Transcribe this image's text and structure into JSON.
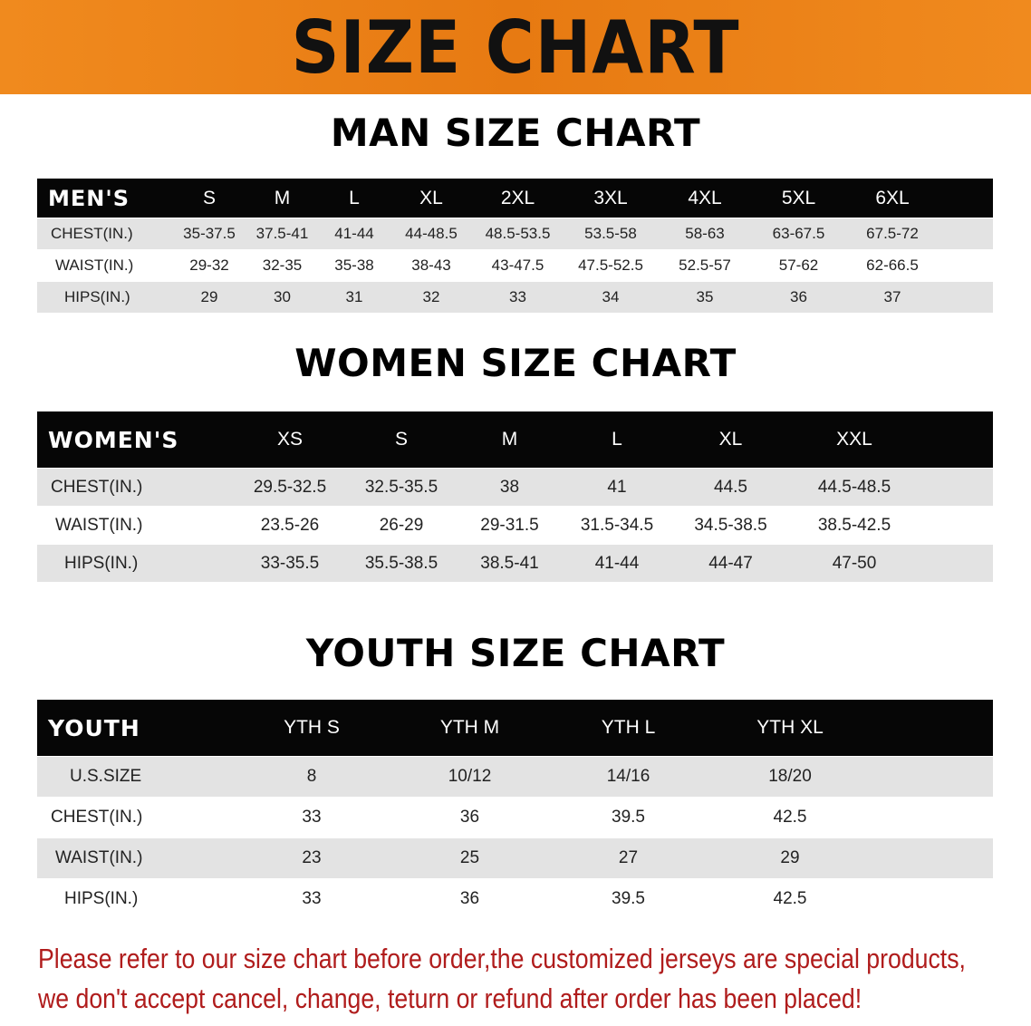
{
  "banner": {
    "title": "SIZE CHART",
    "color": "#ee8418"
  },
  "men": {
    "title": "MAN SIZE CHART",
    "header": [
      "MEN'S",
      "S",
      "M",
      "L",
      "XL",
      "2XL",
      "3XL",
      "4XL",
      "5XL",
      "6XL"
    ],
    "rows": [
      [
        "CHEST(IN.)",
        "35-37.5",
        "37.5-41",
        "41-44",
        "44-48.5",
        "48.5-53.5",
        "53.5-58",
        "58-63",
        "63-67.5",
        "67.5-72"
      ],
      [
        "WAIST(IN.)",
        "29-32",
        "32-35",
        "35-38",
        "38-43",
        "43-47.5",
        "47.5-52.5",
        "52.5-57",
        "57-62",
        "62-66.5"
      ],
      [
        "HIPS(IN.)",
        "29",
        "30",
        "31",
        "32",
        "33",
        "34",
        "35",
        "36",
        "37"
      ]
    ]
  },
  "women": {
    "title": "WOMEN SIZE CHART",
    "header": [
      "WOMEN'S",
      "XS",
      "S",
      "M",
      "L",
      "XL",
      "XXL"
    ],
    "rows": [
      [
        "CHEST(IN.)",
        "29.5-32.5",
        "32.5-35.5",
        "38",
        "41",
        "44.5",
        "44.5-48.5"
      ],
      [
        "WAIST(IN.)",
        "23.5-26",
        "26-29",
        "29-31.5",
        "31.5-34.5",
        "34.5-38.5",
        "38.5-42.5"
      ],
      [
        "HIPS(IN.)",
        "33-35.5",
        "35.5-38.5",
        "38.5-41",
        "41-44",
        "44-47",
        "47-50"
      ]
    ]
  },
  "youth": {
    "title": "YOUTH SIZE CHART",
    "header": [
      "YOUTH",
      "YTH S",
      "YTH M",
      "YTH L",
      "YTH XL"
    ],
    "rows": [
      [
        "U.S.SIZE",
        "8",
        "10/12",
        "14/16",
        "18/20"
      ],
      [
        "CHEST(IN.)",
        "33",
        "36",
        "39.5",
        "42.5"
      ],
      [
        "WAIST(IN.)",
        "23",
        "25",
        "27",
        "29"
      ],
      [
        "HIPS(IN.)",
        "33",
        "36",
        "39.5",
        "42.5"
      ]
    ]
  },
  "note": {
    "line1": "Please refer to our size chart before order,the customized jerseys are special products,",
    "line2": "we don't accept cancel, change, teturn or refund after order has been placed!",
    "color": "#b01c1c"
  }
}
